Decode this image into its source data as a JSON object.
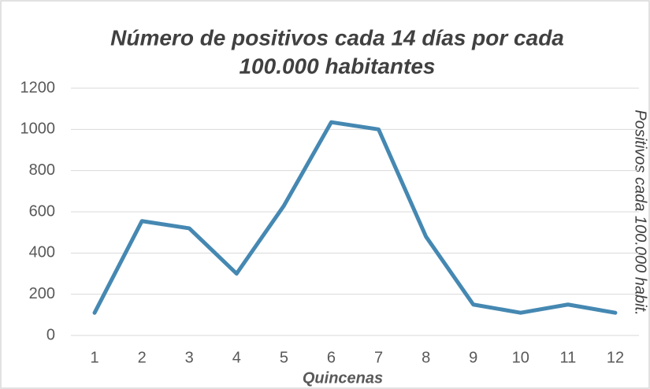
{
  "chart_data": {
    "type": "line",
    "title": [
      "Número de positivos cada 14 días por cada",
      "100.000 habitantes"
    ],
    "x_label": "Quincenas",
    "y_label": "Positivos cada 100.000 habit.",
    "categories": [
      "1",
      "2",
      "3",
      "4",
      "5",
      "6",
      "7",
      "8",
      "9",
      "10",
      "11",
      "12"
    ],
    "values": [
      110,
      555,
      520,
      300,
      630,
      1035,
      1000,
      480,
      150,
      110,
      150,
      110
    ],
    "color": "#4588b2",
    "ylim": [
      0,
      1200
    ],
    "yticks": [
      0,
      200,
      400,
      600,
      800,
      1000,
      1200
    ],
    "grid": true
  }
}
